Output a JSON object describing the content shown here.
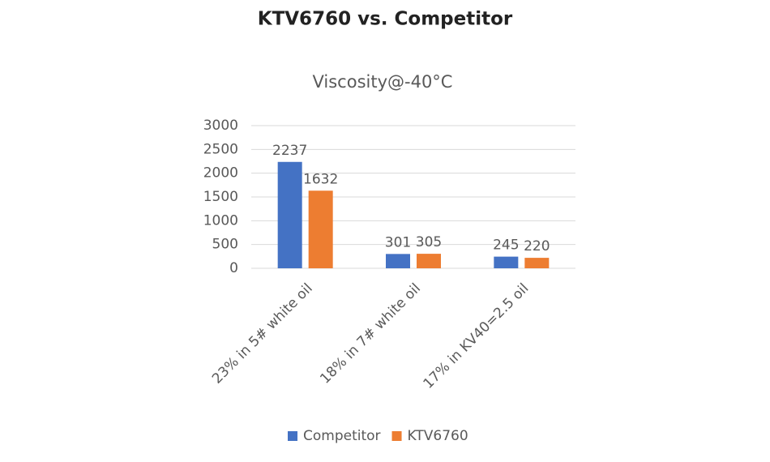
{
  "chart_data": {
    "type": "bar",
    "title": "KTV6760 vs. Competitor",
    "subtitle": "Viscosity@-40°C",
    "categories": [
      "23% in 5# white oil",
      "18% in 7# white oil",
      "17% in KV40=2.5 oil"
    ],
    "series": [
      {
        "name": "Competitor",
        "color": "#4472c4",
        "values": [
          2237,
          301,
          245
        ]
      },
      {
        "name": "KTV6760",
        "color": "#ed7d31",
        "values": [
          1632,
          305,
          220
        ]
      }
    ],
    "ylim": [
      0,
      3000
    ],
    "yticks": [
      0,
      500,
      1000,
      1500,
      2000,
      2500,
      3000
    ],
    "grid": true,
    "legend": "bottom"
  }
}
